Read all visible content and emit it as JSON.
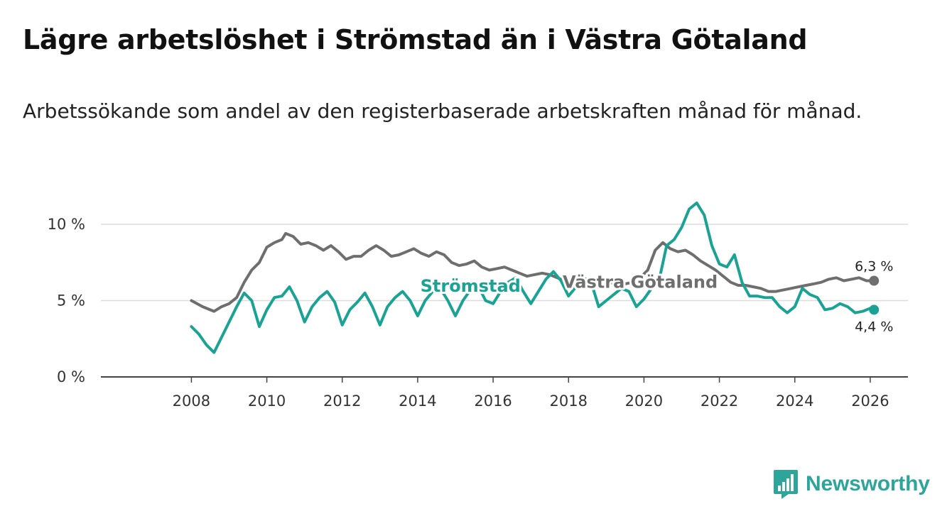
{
  "title": "Lägre arbetslöshet i Strömstad än i Västra Götaland",
  "subtitle": "Arbetssökande som andel av den registerbaserade arbetskraften månad för månad.",
  "brand": {
    "name": "Newsworthy",
    "color": "#2ea59a"
  },
  "chart_data": {
    "type": "line",
    "y_ticks": [
      {
        "value": 0,
        "label": "0 %"
      },
      {
        "value": 5,
        "label": "5 %"
      },
      {
        "value": 10,
        "label": "10 %"
      }
    ],
    "x_ticks": [
      {
        "value": 2008,
        "label": "2008"
      },
      {
        "value": 2010,
        "label": "2010"
      },
      {
        "value": 2012,
        "label": "2012"
      },
      {
        "value": 2014,
        "label": "2014"
      },
      {
        "value": 2016,
        "label": "2016"
      },
      {
        "value": 2018,
        "label": "2018"
      },
      {
        "value": 2020,
        "label": "2020"
      },
      {
        "value": 2022,
        "label": "2022"
      },
      {
        "value": 2024,
        "label": "2024"
      },
      {
        "value": 2026,
        "label": "2026"
      }
    ],
    "xlim": [
      2005.6,
      2027.0
    ],
    "ylim": [
      0,
      12.0
    ],
    "series": [
      {
        "name": "Västra Götaland",
        "color": "#6e6e6e",
        "end_label": "6,3 %",
        "points": [
          [
            2008.0,
            5.0
          ],
          [
            2008.3,
            4.6
          ],
          [
            2008.6,
            4.3
          ],
          [
            2008.8,
            4.6
          ],
          [
            2009.0,
            4.8
          ],
          [
            2009.2,
            5.2
          ],
          [
            2009.4,
            6.2
          ],
          [
            2009.6,
            7.0
          ],
          [
            2009.8,
            7.5
          ],
          [
            2010.0,
            8.5
          ],
          [
            2010.2,
            8.8
          ],
          [
            2010.4,
            9.0
          ],
          [
            2010.5,
            9.4
          ],
          [
            2010.7,
            9.2
          ],
          [
            2010.9,
            8.7
          ],
          [
            2011.1,
            8.8
          ],
          [
            2011.3,
            8.6
          ],
          [
            2011.5,
            8.3
          ],
          [
            2011.7,
            8.6
          ],
          [
            2011.9,
            8.2
          ],
          [
            2012.1,
            7.7
          ],
          [
            2012.3,
            7.9
          ],
          [
            2012.5,
            7.9
          ],
          [
            2012.7,
            8.3
          ],
          [
            2012.9,
            8.6
          ],
          [
            2013.1,
            8.3
          ],
          [
            2013.3,
            7.9
          ],
          [
            2013.5,
            8.0
          ],
          [
            2013.7,
            8.2
          ],
          [
            2013.9,
            8.4
          ],
          [
            2014.1,
            8.1
          ],
          [
            2014.3,
            7.9
          ],
          [
            2014.5,
            8.2
          ],
          [
            2014.7,
            8.0
          ],
          [
            2014.9,
            7.5
          ],
          [
            2015.1,
            7.3
          ],
          [
            2015.3,
            7.4
          ],
          [
            2015.5,
            7.6
          ],
          [
            2015.7,
            7.2
          ],
          [
            2015.9,
            7.0
          ],
          [
            2016.1,
            7.1
          ],
          [
            2016.3,
            7.2
          ],
          [
            2016.5,
            7.0
          ],
          [
            2016.7,
            6.8
          ],
          [
            2016.9,
            6.6
          ],
          [
            2017.1,
            6.7
          ],
          [
            2017.3,
            6.8
          ],
          [
            2017.5,
            6.7
          ],
          [
            2017.7,
            6.5
          ],
          [
            2017.9,
            6.3
          ],
          [
            2018.1,
            6.4
          ],
          [
            2018.3,
            6.5
          ],
          [
            2018.5,
            6.3
          ],
          [
            2018.7,
            6.2
          ],
          [
            2018.9,
            6.3
          ],
          [
            2019.1,
            6.2
          ],
          [
            2019.3,
            6.0
          ],
          [
            2019.5,
            6.1
          ],
          [
            2019.7,
            6.2
          ],
          [
            2019.9,
            6.5
          ],
          [
            2020.1,
            7.0
          ],
          [
            2020.3,
            8.3
          ],
          [
            2020.5,
            8.8
          ],
          [
            2020.7,
            8.4
          ],
          [
            2020.9,
            8.2
          ],
          [
            2021.1,
            8.3
          ],
          [
            2021.3,
            8.0
          ],
          [
            2021.5,
            7.6
          ],
          [
            2021.7,
            7.3
          ],
          [
            2021.9,
            7.0
          ],
          [
            2022.1,
            6.6
          ],
          [
            2022.3,
            6.2
          ],
          [
            2022.5,
            6.0
          ],
          [
            2022.7,
            6.0
          ],
          [
            2022.9,
            5.9
          ],
          [
            2023.1,
            5.8
          ],
          [
            2023.3,
            5.6
          ],
          [
            2023.5,
            5.6
          ],
          [
            2023.7,
            5.7
          ],
          [
            2023.9,
            5.8
          ],
          [
            2024.1,
            5.9
          ],
          [
            2024.3,
            6.0
          ],
          [
            2024.5,
            6.1
          ],
          [
            2024.7,
            6.2
          ],
          [
            2024.9,
            6.4
          ],
          [
            2025.1,
            6.5
          ],
          [
            2025.3,
            6.3
          ],
          [
            2025.5,
            6.4
          ],
          [
            2025.7,
            6.5
          ],
          [
            2025.9,
            6.3
          ],
          [
            2026.1,
            6.3
          ]
        ]
      },
      {
        "name": "Strömstad",
        "color": "#1aa394",
        "end_label": "4,4 %",
        "points": [
          [
            2008.0,
            3.3
          ],
          [
            2008.2,
            2.8
          ],
          [
            2008.4,
            2.1
          ],
          [
            2008.6,
            1.6
          ],
          [
            2008.8,
            2.6
          ],
          [
            2009.0,
            3.6
          ],
          [
            2009.2,
            4.6
          ],
          [
            2009.4,
            5.5
          ],
          [
            2009.6,
            5.0
          ],
          [
            2009.8,
            3.3
          ],
          [
            2010.0,
            4.4
          ],
          [
            2010.2,
            5.2
          ],
          [
            2010.4,
            5.3
          ],
          [
            2010.6,
            5.9
          ],
          [
            2010.8,
            5.0
          ],
          [
            2011.0,
            3.6
          ],
          [
            2011.2,
            4.6
          ],
          [
            2011.4,
            5.2
          ],
          [
            2011.6,
            5.6
          ],
          [
            2011.8,
            4.9
          ],
          [
            2012.0,
            3.4
          ],
          [
            2012.2,
            4.4
          ],
          [
            2012.4,
            4.9
          ],
          [
            2012.6,
            5.5
          ],
          [
            2012.8,
            4.6
          ],
          [
            2013.0,
            3.4
          ],
          [
            2013.2,
            4.6
          ],
          [
            2013.4,
            5.2
          ],
          [
            2013.6,
            5.6
          ],
          [
            2013.8,
            5.0
          ],
          [
            2014.0,
            4.0
          ],
          [
            2014.2,
            5.0
          ],
          [
            2014.4,
            5.6
          ],
          [
            2014.6,
            5.8
          ],
          [
            2014.8,
            5.0
          ],
          [
            2015.0,
            4.0
          ],
          [
            2015.2,
            5.0
          ],
          [
            2015.4,
            5.7
          ],
          [
            2015.6,
            6.0
          ],
          [
            2015.8,
            5.0
          ],
          [
            2016.0,
            4.8
          ],
          [
            2016.2,
            5.6
          ],
          [
            2016.4,
            6.2
          ],
          [
            2016.6,
            6.5
          ],
          [
            2016.8,
            5.6
          ],
          [
            2017.0,
            4.8
          ],
          [
            2017.2,
            5.6
          ],
          [
            2017.4,
            6.4
          ],
          [
            2017.6,
            6.9
          ],
          [
            2017.8,
            6.3
          ],
          [
            2018.0,
            5.3
          ],
          [
            2018.2,
            5.9
          ],
          [
            2018.4,
            6.5
          ],
          [
            2018.6,
            6.2
          ],
          [
            2018.8,
            4.6
          ],
          [
            2019.0,
            5.0
          ],
          [
            2019.2,
            5.4
          ],
          [
            2019.4,
            5.8
          ],
          [
            2019.6,
            5.6
          ],
          [
            2019.8,
            4.6
          ],
          [
            2020.0,
            5.1
          ],
          [
            2020.2,
            5.8
          ],
          [
            2020.4,
            6.3
          ],
          [
            2020.6,
            8.6
          ],
          [
            2020.8,
            9.0
          ],
          [
            2021.0,
            9.8
          ],
          [
            2021.2,
            11.0
          ],
          [
            2021.4,
            11.4
          ],
          [
            2021.6,
            10.6
          ],
          [
            2021.8,
            8.6
          ],
          [
            2022.0,
            7.4
          ],
          [
            2022.2,
            7.2
          ],
          [
            2022.4,
            8.0
          ],
          [
            2022.6,
            6.2
          ],
          [
            2022.8,
            5.3
          ],
          [
            2023.0,
            5.3
          ],
          [
            2023.2,
            5.2
          ],
          [
            2023.4,
            5.2
          ],
          [
            2023.6,
            4.6
          ],
          [
            2023.8,
            4.2
          ],
          [
            2024.0,
            4.6
          ],
          [
            2024.2,
            5.8
          ],
          [
            2024.4,
            5.4
          ],
          [
            2024.6,
            5.2
          ],
          [
            2024.8,
            4.4
          ],
          [
            2025.0,
            4.5
          ],
          [
            2025.2,
            4.8
          ],
          [
            2025.4,
            4.6
          ],
          [
            2025.6,
            4.2
          ],
          [
            2025.8,
            4.3
          ],
          [
            2026.0,
            4.5
          ],
          [
            2026.1,
            4.4
          ]
        ]
      }
    ]
  }
}
